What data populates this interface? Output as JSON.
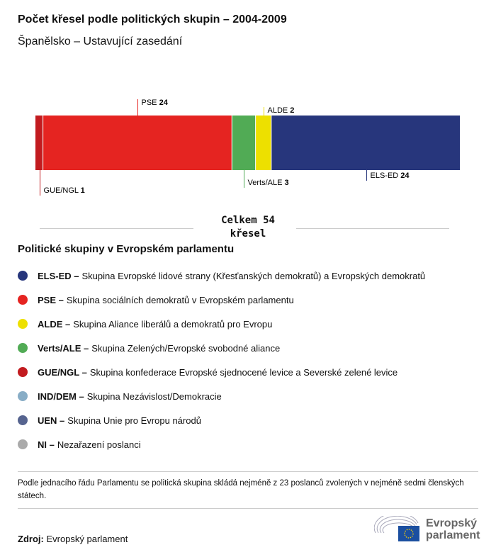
{
  "title": "Počet křesel podle politických skupin – 2004-2009",
  "subtitle": "Španělsko – Ustavující zasedání",
  "chart_data": {
    "type": "bar",
    "orientation": "stacked-horizontal",
    "categories": [
      "GUE/NGL",
      "PSE",
      "Verts/ALE",
      "ALDE",
      "ELS-ED"
    ],
    "values": [
      1,
      24,
      3,
      2,
      24
    ],
    "colors": [
      "#c21b1f",
      "#e52421",
      "#51ab55",
      "#ede000",
      "#27367c"
    ],
    "label_positions": [
      "below",
      "above",
      "below",
      "above",
      "below"
    ],
    "total_label": "Celkem 54",
    "total_unit": "křesel"
  },
  "legend": {
    "title": "Politické skupiny v Evropském parlamentu",
    "items": [
      {
        "abbr": "ELS-ED –",
        "text": "Skupina Evropské lidové strany (Křesťanských demokratů) a Evropských demokratů",
        "color": "#27367c"
      },
      {
        "abbr": "PSE –",
        "text": "Skupina sociálních demokratů v Evropském parlamentu",
        "color": "#e52421"
      },
      {
        "abbr": "ALDE –",
        "text": "Skupina Aliance liberálů a demokratů pro Evropu",
        "color": "#ede000"
      },
      {
        "abbr": "Verts/ALE –",
        "text": "Skupina Zelených/Evropské svobodné aliance",
        "color": "#51ab55"
      },
      {
        "abbr": "GUE/NGL –",
        "text": "Skupina konfederace Evropské sjednocené levice a Severské zelené levice",
        "color": "#c21b1f"
      },
      {
        "abbr": "IND/DEM –",
        "text": "Skupina Nezávislost/Demokracie",
        "color": "#88adc6"
      },
      {
        "abbr": "UEN –",
        "text": "Skupina Unie pro Evropu národů",
        "color": "#56648f"
      },
      {
        "abbr": "NI –",
        "text": "Nezařazení poslanci",
        "color": "#aaaaaa"
      }
    ]
  },
  "note": "Podle jednacího řádu Parlamentu se politická skupina skládá nejméně z 23 poslanců zvolených v nejméně sedmi členských státech.",
  "source": {
    "label": "Zdroj:",
    "value": "Evropský parlament"
  },
  "logo": {
    "line1": "Evropský",
    "line2": "parlament"
  }
}
